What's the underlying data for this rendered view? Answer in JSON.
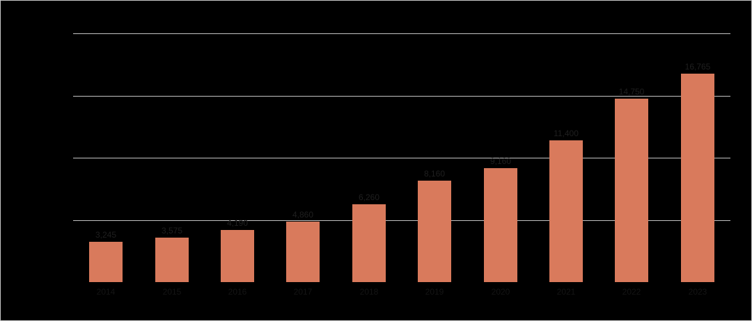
{
  "chart_data": {
    "type": "bar",
    "title": "",
    "categories": [
      "2014",
      "2015",
      "2016",
      "2017",
      "2018",
      "2019",
      "2020",
      "2021",
      "2022",
      "2023"
    ],
    "values": [
      3245,
      3575,
      4190,
      4860,
      6260,
      8160,
      9160,
      11400,
      14750,
      16765
    ],
    "value_labels": [
      "3,245",
      "3,575",
      "4,190",
      "4,860",
      "6,260",
      "8,160",
      "9,160",
      "11,400",
      "14,750",
      "16,765"
    ],
    "ylim": [
      0,
      20000
    ],
    "gridline_values": [
      5000,
      10000,
      15000,
      20000
    ],
    "grid_on": true,
    "legend": "none",
    "colors": {
      "bar": "#d97a5c",
      "background": "#000000",
      "gridline": "#c4c4c4",
      "data_label": "#1f1f1f",
      "category_label": "#141414"
    }
  }
}
